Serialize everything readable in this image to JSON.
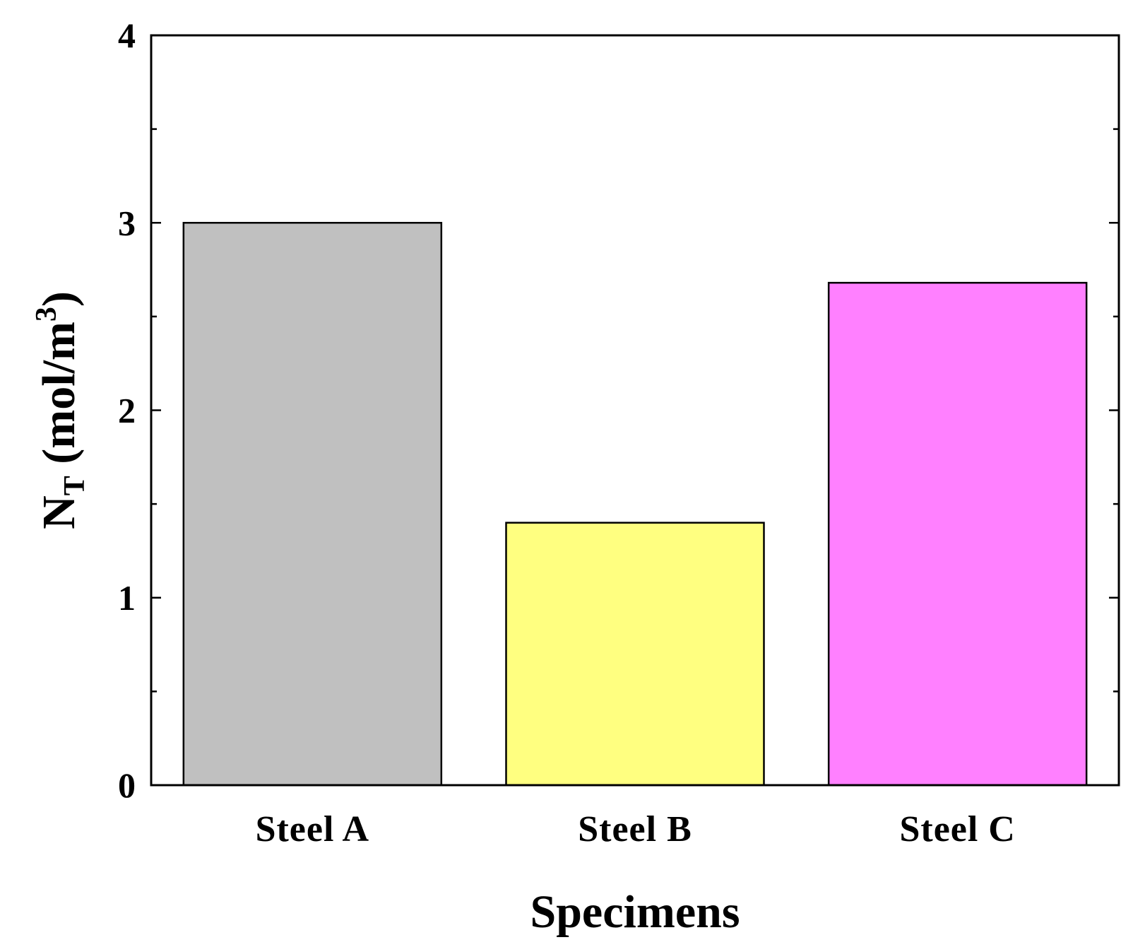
{
  "chart_data": {
    "type": "bar",
    "categories": [
      "Steel A",
      "Steel B",
      "Steel C"
    ],
    "values": [
      3.0,
      1.4,
      2.68
    ],
    "colors": [
      "#c0c0c0",
      "#ffff80",
      "#ff80ff"
    ],
    "xlabel": "Specimens",
    "ylabel": {
      "symbol": "N",
      "subscript": "T",
      "unit_open": " (mol/m",
      "superscript": "3",
      "unit_close": ")"
    },
    "ylim": [
      0,
      4
    ],
    "yticks": [
      "0",
      "1",
      "2",
      "3",
      "4"
    ],
    "grid": false,
    "legend": false
  }
}
